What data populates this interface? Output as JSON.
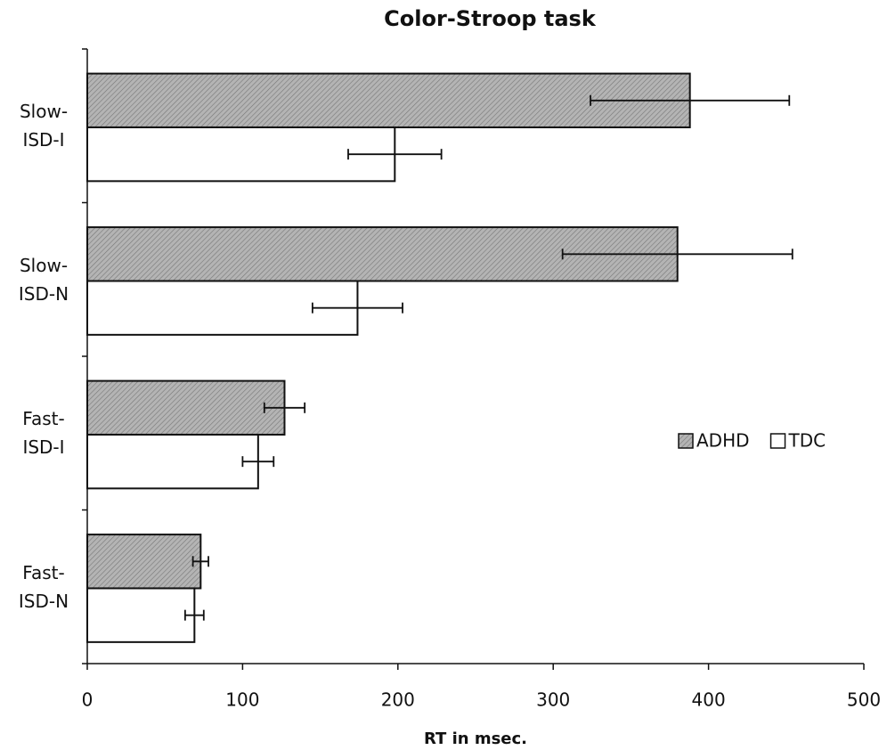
{
  "chart_data": {
    "type": "bar",
    "orientation": "horizontal",
    "title": "Color-Stroop task",
    "x_label": "RT in msec.",
    "categories": [
      "Slow-ISD-I",
      "Slow-ISD-N",
      "Fast-ISD-I",
      "Fast-ISD-N"
    ],
    "series": [
      {
        "name": "ADHD",
        "color": "#b4b4b4",
        "values": [
          388,
          380,
          127,
          73
        ],
        "errors": [
          64,
          74,
          13,
          5
        ]
      },
      {
        "name": "TDC",
        "color": "#ffffff",
        "values": [
          198,
          174,
          110,
          69
        ],
        "errors": [
          30,
          29,
          10,
          6
        ]
      }
    ],
    "xlim": [
      0,
      500
    ],
    "xticks": [
      0,
      100,
      200,
      300,
      400,
      500
    ],
    "grid": false,
    "legend": "right"
  }
}
